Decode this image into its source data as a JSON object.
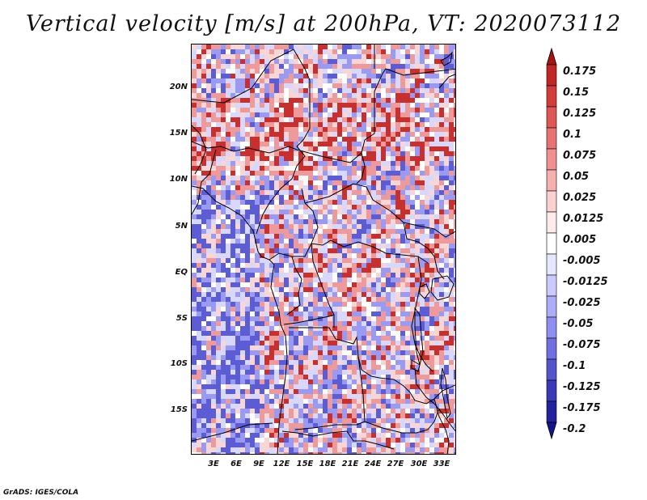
{
  "title": "Vertical velocity [m/s] at 200hPa, VT: 2020073112",
  "credit": "GrADS: IGES/COLA",
  "lat_ticks": [
    "20N",
    "15N",
    "10N",
    "5N",
    "EQ",
    "5S",
    "10S",
    "15S"
  ],
  "lon_ticks": [
    "3E",
    "6E",
    "9E",
    "12E",
    "15E",
    "18E",
    "21E",
    "24E",
    "27E",
    "30E",
    "33E"
  ],
  "colorbar": {
    "labels": [
      "0.175",
      "0.15",
      "0.125",
      "0.1",
      "0.075",
      "0.05",
      "0.025",
      "0.0125",
      "0.005",
      "-0.005",
      "-0.0125",
      "-0.025",
      "-0.05",
      "-0.075",
      "-0.1",
      "-0.125",
      "-0.175",
      "-0.2"
    ],
    "colors": [
      "#a81414",
      "#c02626",
      "#d43c3c",
      "#e05656",
      "#e87272",
      "#f09090",
      "#f6b0b0",
      "#fad0d0",
      "#fdeaea",
      "#ffffff",
      "#e6e6ff",
      "#cacaff",
      "#acacf8",
      "#8e8ef0",
      "#7070e0",
      "#5454cc",
      "#3a3ab6",
      "#22229e",
      "#14148a"
    ]
  },
  "field_colors": {
    "strong_up": "#c83030",
    "up": "#ee9a9a",
    "weak_up": "#f9d6d6",
    "neutral": "#ffffff",
    "weak_down": "#d8d8ff",
    "down": "#9a9af2",
    "strong_down": "#5c5cd4"
  }
}
